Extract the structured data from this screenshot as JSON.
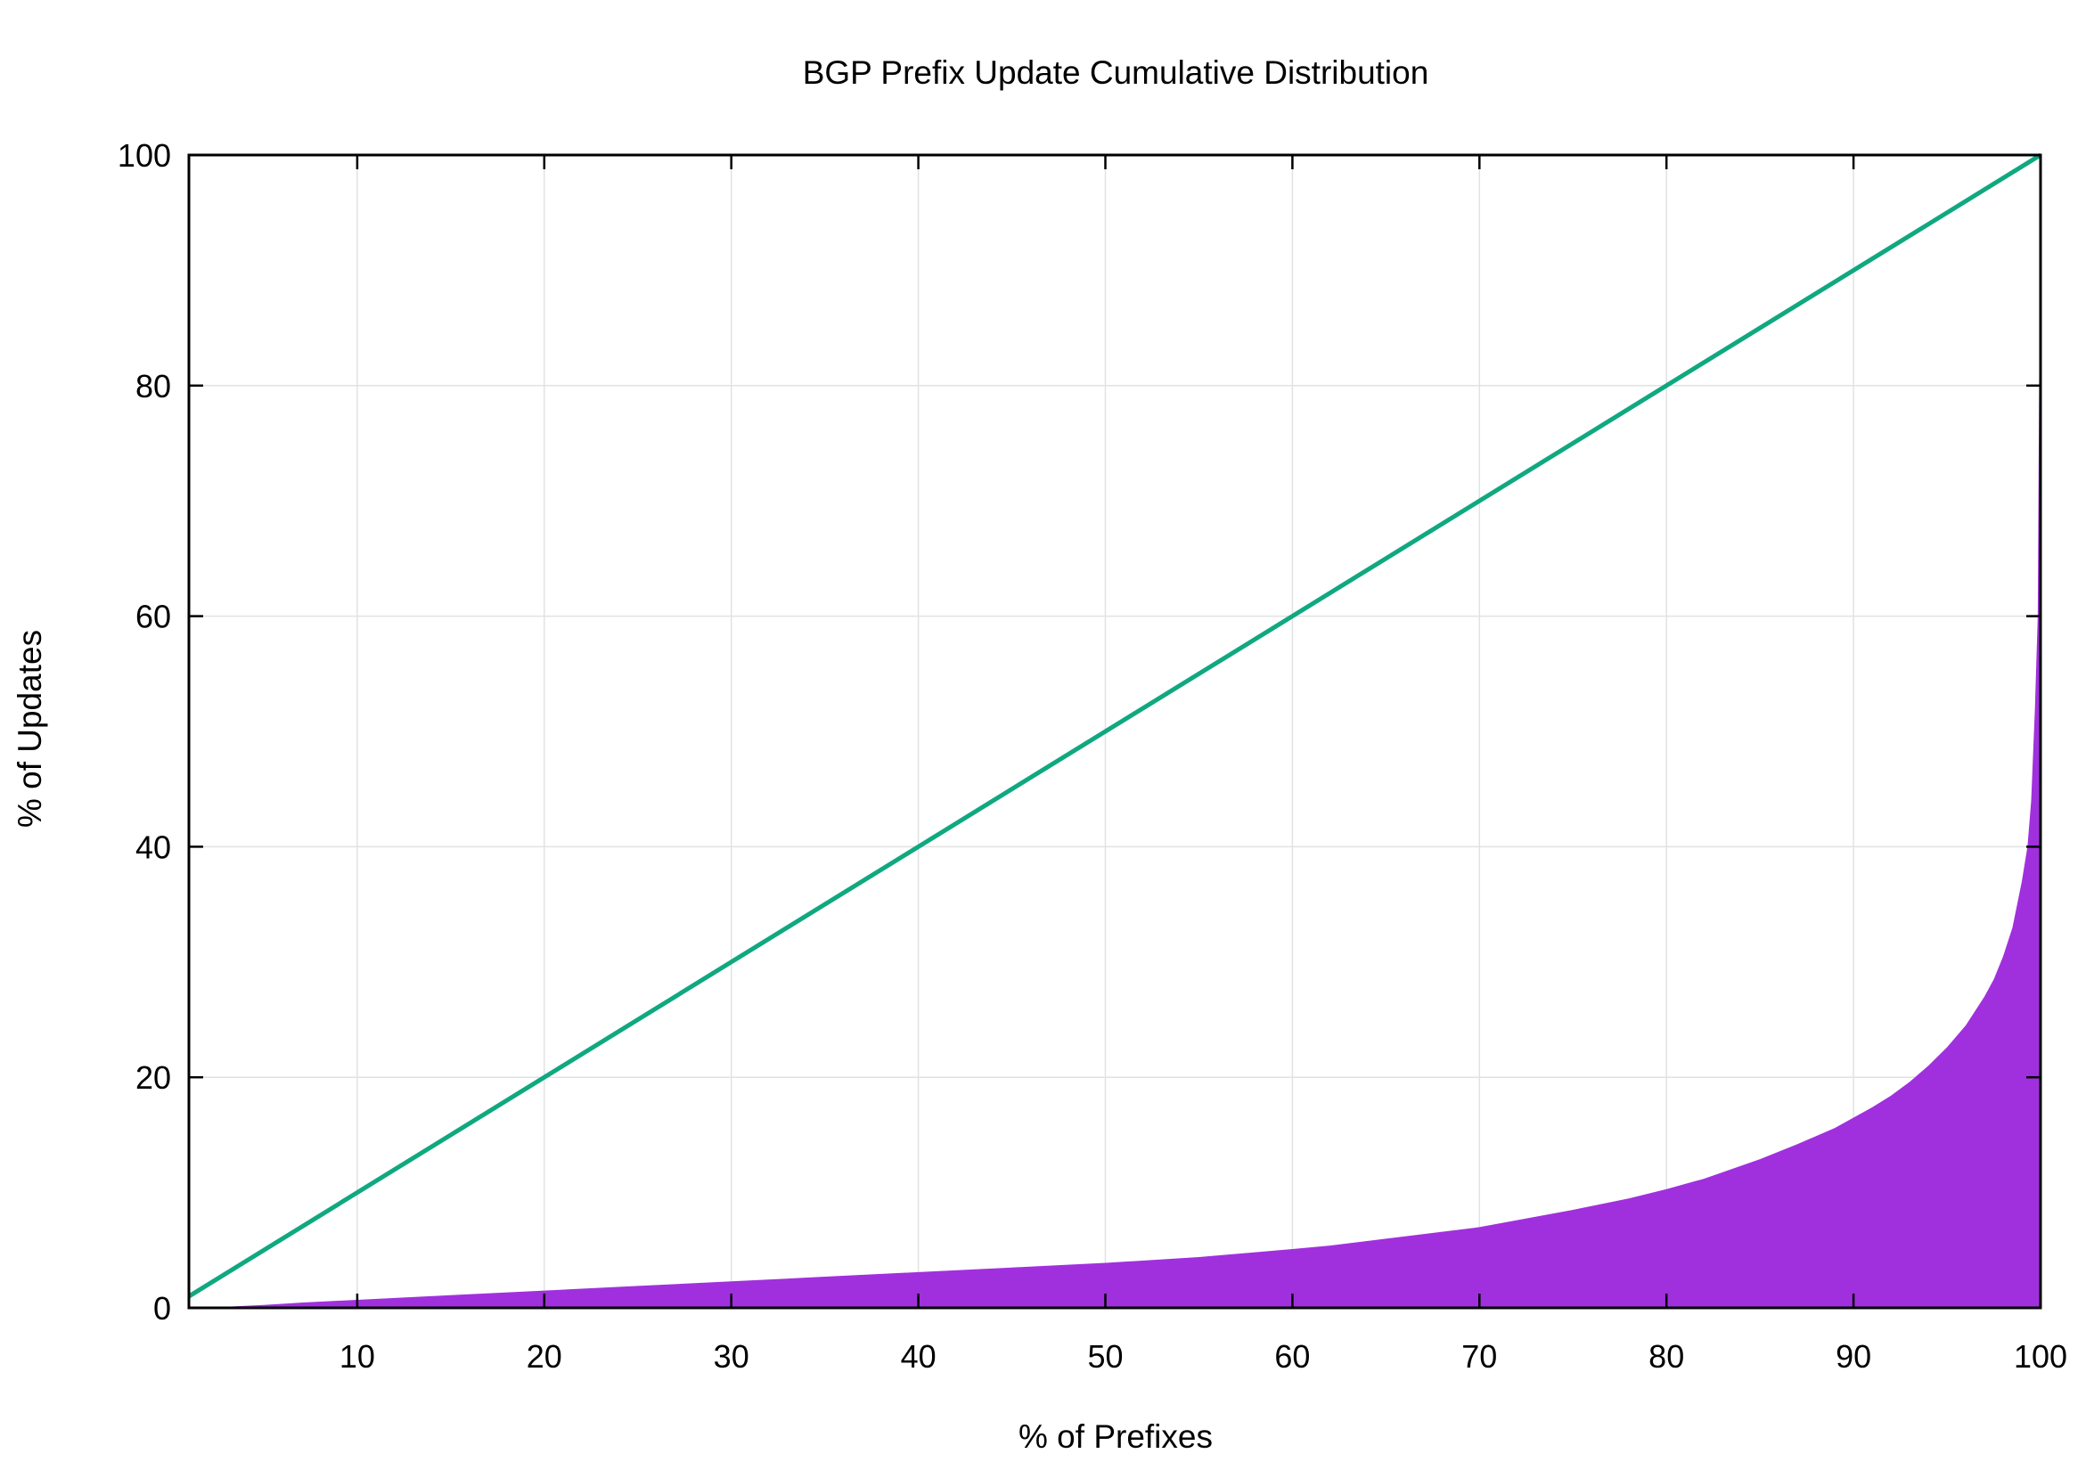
{
  "chart_data": {
    "type": "area",
    "title": "BGP Prefix Update Cumulative Distribution",
    "xlabel": "% of Prefixes",
    "ylabel": "% of Updates",
    "xlim": [
      1,
      100
    ],
    "ylim": [
      0,
      100
    ],
    "x_ticks": [
      10,
      20,
      30,
      40,
      50,
      60,
      70,
      80,
      90,
      100
    ],
    "y_ticks": [
      0,
      20,
      40,
      60,
      80,
      100
    ],
    "grid": true,
    "legend": "none",
    "series": [
      {
        "kind": "area",
        "color": "#a030dd",
        "x": [
          1,
          2,
          3,
          5,
          7,
          10,
          15,
          20,
          25,
          30,
          35,
          40,
          45,
          50,
          55,
          60,
          62,
          65,
          68,
          70,
          72,
          75,
          78,
          80,
          82,
          85,
          87,
          89,
          90,
          91,
          92,
          93,
          94,
          95,
          96,
          97,
          97.5,
          98,
          98.5,
          99,
          99.3,
          99.5,
          99.7,
          99.85,
          100
        ],
        "y": [
          0,
          0.05,
          0.1,
          0.25,
          0.45,
          0.7,
          1.1,
          1.5,
          1.9,
          2.3,
          2.7,
          3.1,
          3.5,
          3.9,
          4.4,
          5.1,
          5.4,
          6.0,
          6.6,
          7.0,
          7.6,
          8.5,
          9.5,
          10.3,
          11.2,
          12.9,
          14.2,
          15.6,
          16.5,
          17.4,
          18.4,
          19.6,
          21.0,
          22.6,
          24.5,
          27.0,
          28.5,
          30.5,
          33.0,
          37.0,
          40.0,
          44.0,
          52.0,
          60.0,
          100
        ]
      },
      {
        "kind": "line",
        "color": "#10a880",
        "x": [
          1,
          100
        ],
        "y": [
          1,
          100
        ]
      }
    ]
  }
}
